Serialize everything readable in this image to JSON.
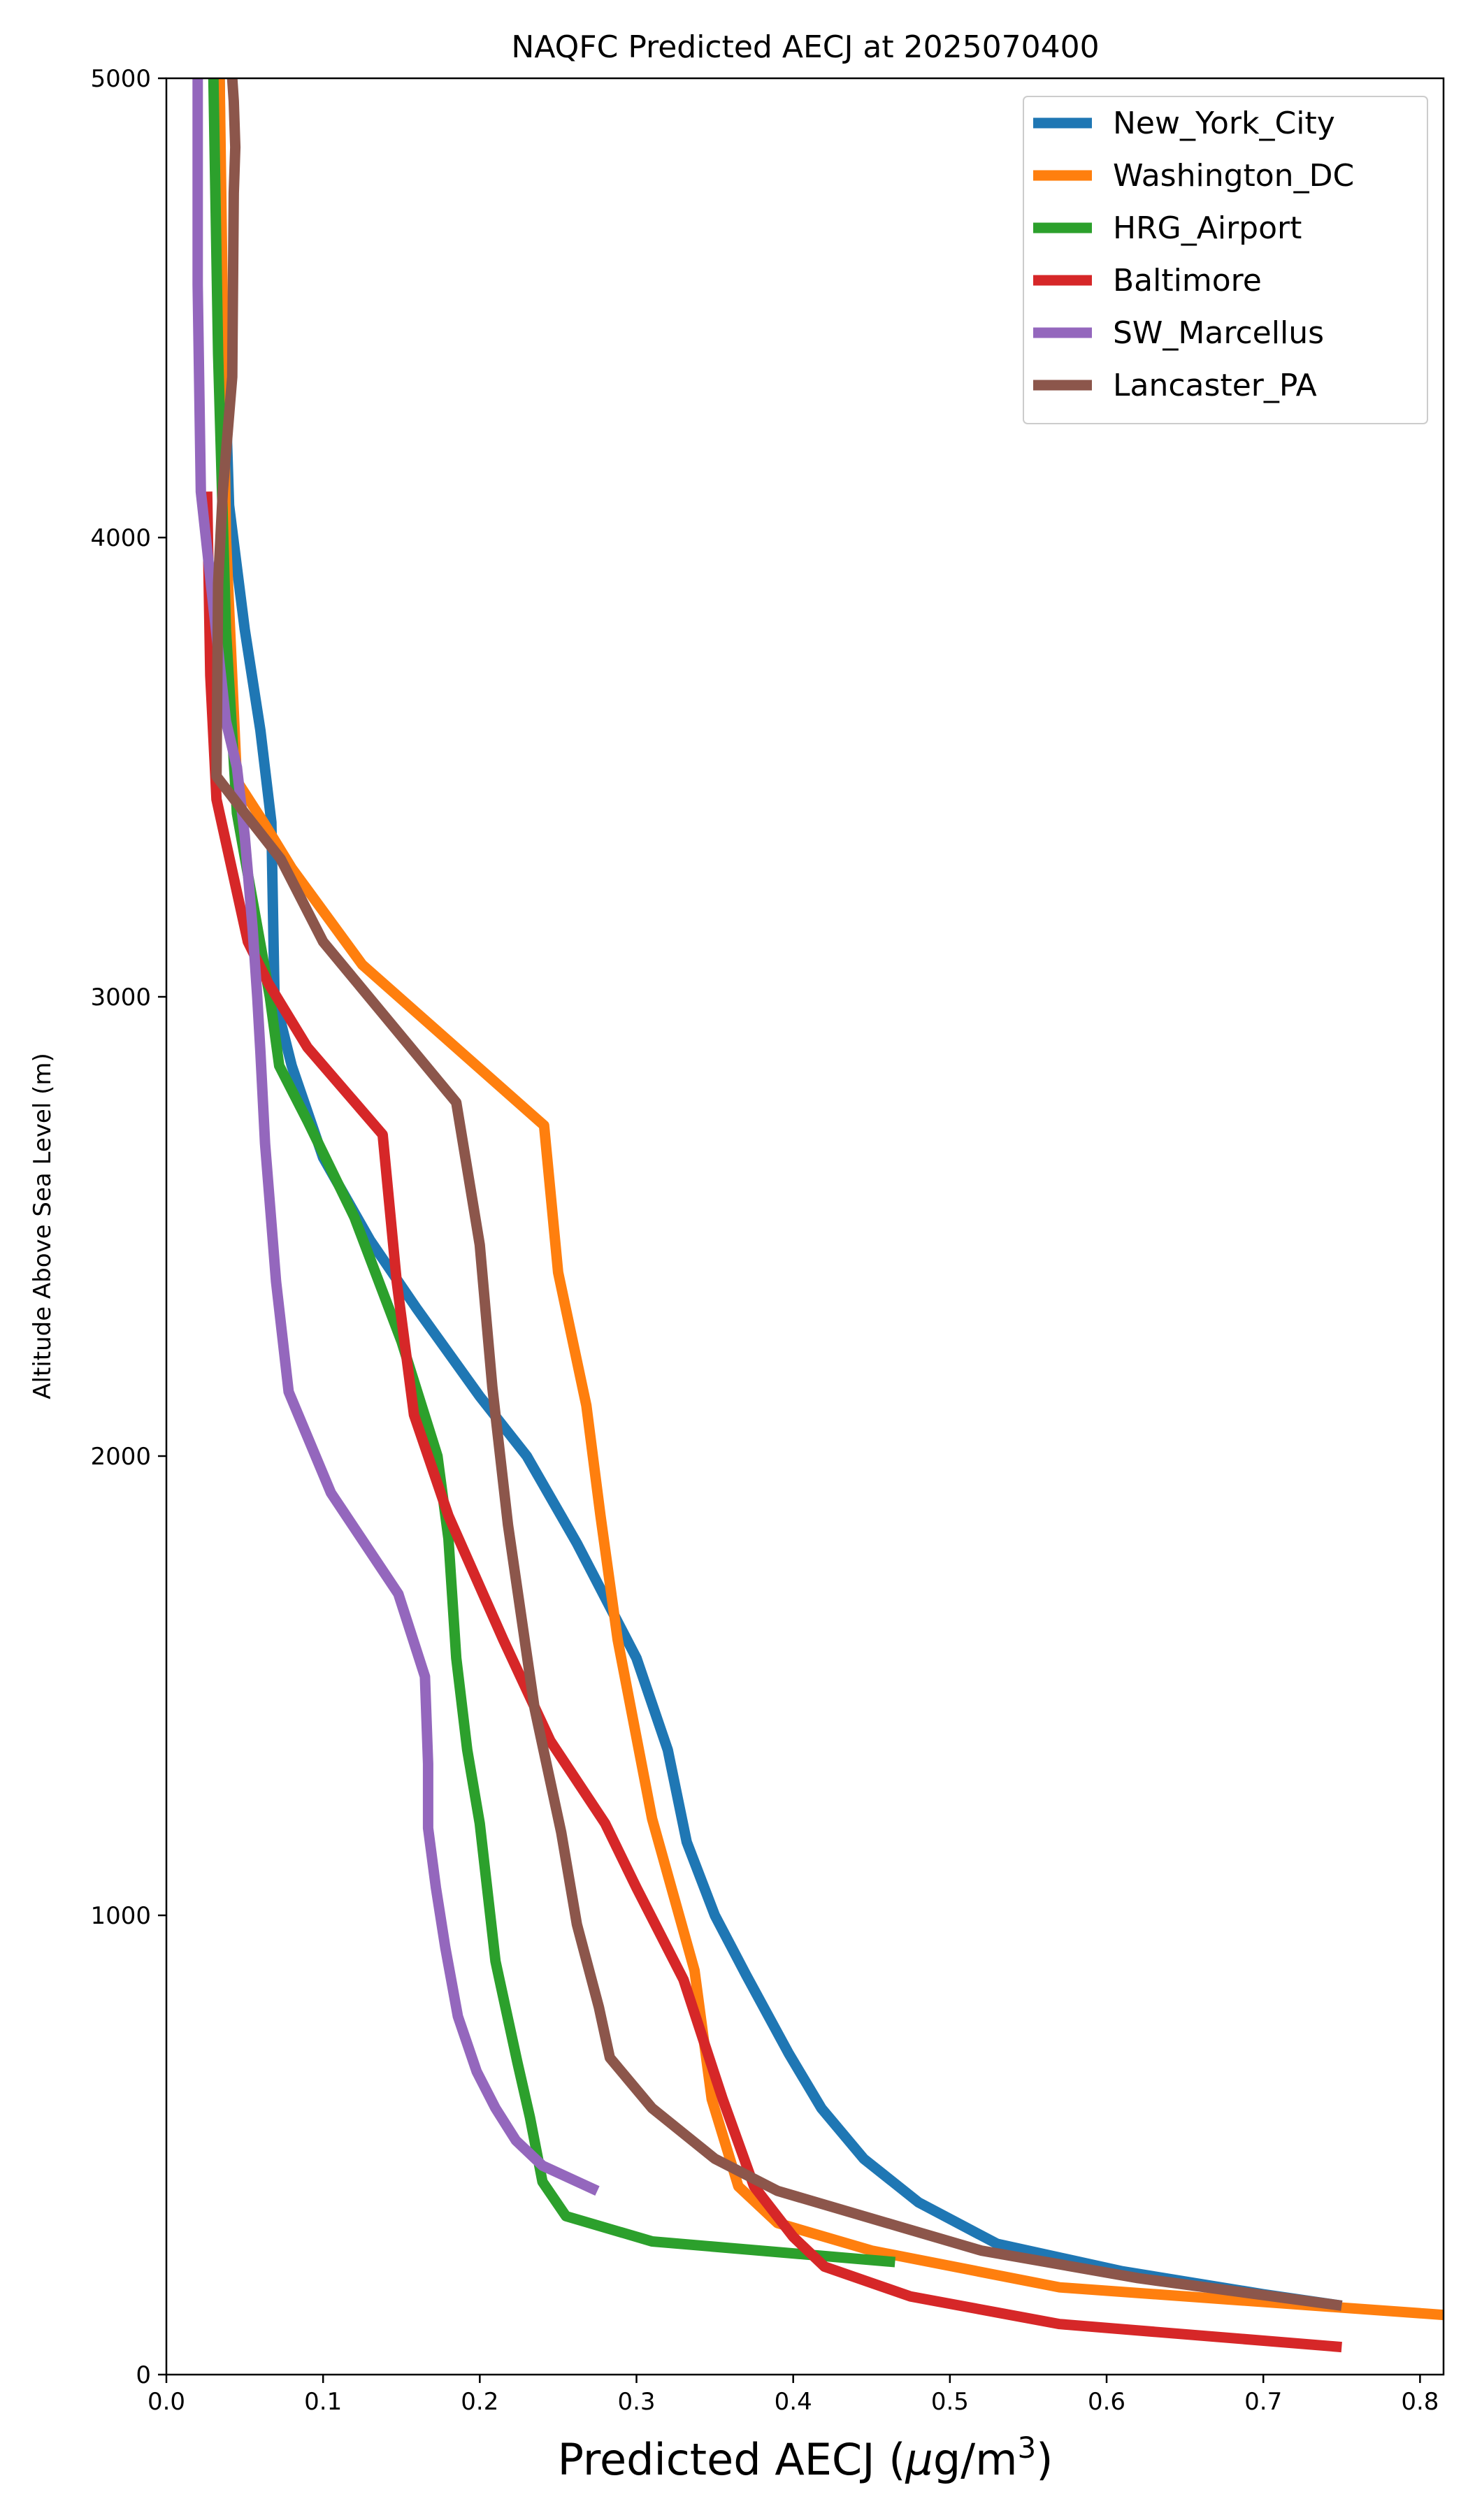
{
  "chart_data": {
    "type": "line",
    "title": "NAQFC Predicted AECJ at 2025070400",
    "xlabel": "Predicted AECJ (μg/m³)",
    "ylabel": "Altitude Above Sea Level (m)",
    "xlim": [
      0,
      0.815
    ],
    "ylim": [
      0,
      5000
    ],
    "xticks": [
      "0.0",
      "0.1",
      "0.2",
      "0.3",
      "0.4",
      "0.5",
      "0.6",
      "0.7",
      "0.8"
    ],
    "yticks": [
      "0",
      "1000",
      "2000",
      "3000",
      "4000",
      "5000"
    ],
    "grid": false,
    "legend_position": "top-right",
    "series": [
      {
        "name": "New_York_City",
        "color": "#1f77b4",
        "x": [
          0.75,
          0.7,
          0.61,
          0.53,
          0.48,
          0.445,
          0.418,
          0.397,
          0.37,
          0.35,
          0.332,
          0.32,
          0.3,
          0.262,
          0.23,
          0.2,
          0.16,
          0.13,
          0.1,
          0.08,
          0.069,
          0.067,
          0.06,
          0.05,
          0.04,
          0.035,
          0.034
        ],
        "y": [
          150,
          175,
          225,
          285,
          375,
          470,
          580,
          700,
          870,
          1000,
          1160,
          1360,
          1560,
          1810,
          2000,
          2130,
          2320,
          2470,
          2650,
          2850,
          3000,
          3380,
          3580,
          3800,
          4070,
          4600,
          5000
        ]
      },
      {
        "name": "Washington_DC",
        "color": "#ff7f0e",
        "x": [
          0.815,
          0.57,
          0.45,
          0.39,
          0.365,
          0.348,
          0.337,
          0.31,
          0.288,
          0.277,
          0.268,
          0.25,
          0.241,
          0.125,
          0.08,
          0.062,
          0.045,
          0.038,
          0.034
        ],
        "y": [
          130,
          190,
          270,
          330,
          410,
          600,
          880,
          1210,
          1600,
          1870,
          2110,
          2400,
          2720,
          3070,
          3280,
          3380,
          3470,
          4000,
          5000
        ]
      },
      {
        "name": "HRG_Airport",
        "color": "#2ca02c",
        "x": [
          0.465,
          0.31,
          0.255,
          0.24,
          0.232,
          0.224,
          0.21,
          0.2,
          0.192,
          0.185,
          0.18,
          0.173,
          0.15,
          0.12,
          0.09,
          0.072,
          0.066,
          0.045,
          0.038,
          0.033,
          0.03
        ],
        "y": [
          245,
          290,
          345,
          420,
          560,
          680,
          900,
          1200,
          1360,
          1560,
          1820,
          2000,
          2250,
          2520,
          2730,
          2850,
          3000,
          3400,
          3800,
          4400,
          5000
        ]
      },
      {
        "name": "Baltimore",
        "color": "#d62728",
        "x": [
          0.75,
          0.57,
          0.475,
          0.42,
          0.4,
          0.375,
          0.355,
          0.33,
          0.3,
          0.28,
          0.245,
          0.215,
          0.18,
          0.158,
          0.147,
          0.138,
          0.09,
          0.065,
          0.052,
          0.032,
          0.028,
          0.026
        ],
        "y": [
          60,
          110,
          170,
          235,
          300,
          410,
          600,
          860,
          1060,
          1200,
          1380,
          1600,
          1870,
          2090,
          2380,
          2700,
          2890,
          3030,
          3120,
          3430,
          3700,
          4100
        ]
      },
      {
        "name": "SW_Marcellus",
        "color": "#9467bd",
        "x": [
          0.275,
          0.24,
          0.223,
          0.21,
          0.198,
          0.186,
          0.178,
          0.172,
          0.167,
          0.167,
          0.165,
          0.148,
          0.105,
          0.078,
          0.07,
          0.063,
          0.06,
          0.058,
          0.055,
          0.05,
          0.045,
          0.038,
          0.022,
          0.02,
          0.02,
          0.02
        ],
        "y": [
          400,
          455,
          510,
          580,
          660,
          780,
          930,
          1060,
          1190,
          1330,
          1520,
          1700,
          1920,
          2140,
          2380,
          2680,
          2880,
          3000,
          3150,
          3350,
          3500,
          3600,
          4100,
          4550,
          4850,
          5000
        ]
      },
      {
        "name": "Lancaster_PA",
        "color": "#8c564b",
        "x": [
          0.75,
          0.62,
          0.52,
          0.47,
          0.39,
          0.35,
          0.31,
          0.283,
          0.276,
          0.262,
          0.252,
          0.235,
          0.218,
          0.208,
          0.2,
          0.185,
          0.1,
          0.073,
          0.05,
          0.032,
          0.033,
          0.036,
          0.042,
          0.043,
          0.044,
          0.043,
          0.042
        ],
        "y": [
          150,
          210,
          270,
          320,
          400,
          470,
          580,
          690,
          800,
          980,
          1180,
          1450,
          1850,
          2150,
          2460,
          2770,
          3120,
          3300,
          3400,
          3480,
          3900,
          4100,
          4350,
          4750,
          4850,
          4950,
          5000
        ]
      }
    ]
  }
}
